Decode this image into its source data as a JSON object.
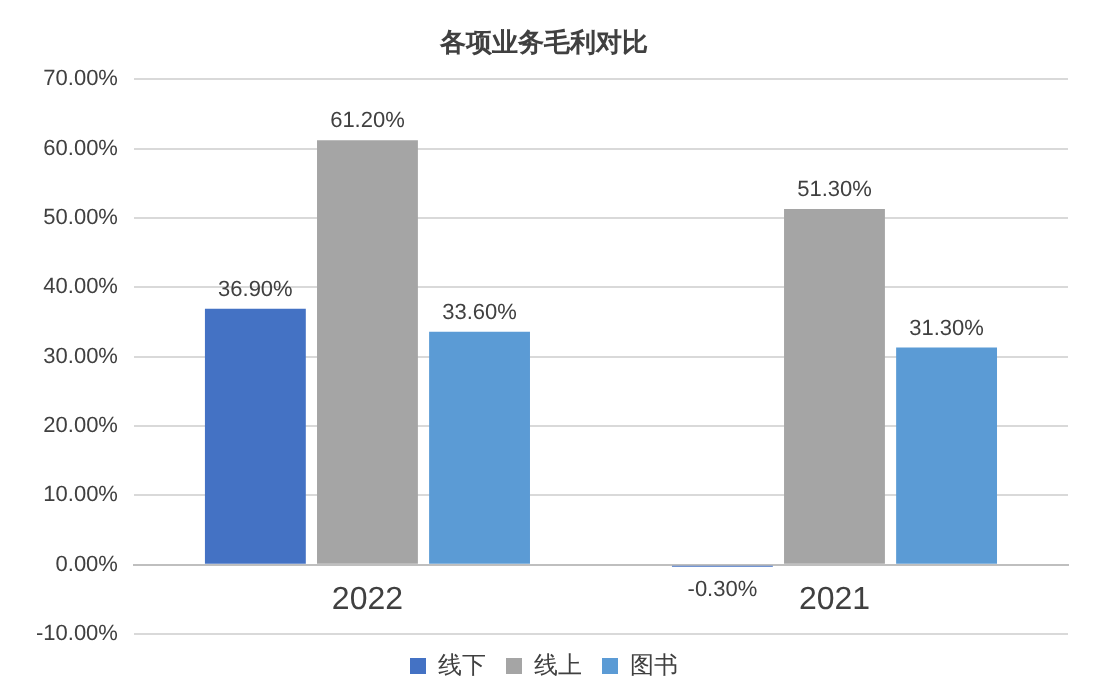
{
  "chart_data": {
    "type": "bar",
    "title": "各项业务毛利对比",
    "categories": [
      "2022",
      "2021"
    ],
    "series": [
      {
        "name": "线下",
        "color": "#4472c4",
        "values": [
          36.9,
          -0.3
        ],
        "value_labels": [
          "36.90%",
          "-0.30%"
        ]
      },
      {
        "name": "线上",
        "color": "#a5a5a5",
        "values": [
          61.2,
          51.3
        ],
        "value_labels": [
          "61.20%",
          "51.30%"
        ]
      },
      {
        "name": "图书",
        "color": "#5b9bd5",
        "values": [
          33.6,
          31.3
        ],
        "value_labels": [
          "33.60%",
          "31.30%"
        ]
      }
    ],
    "ylim": [
      -10,
      70
    ],
    "yticks": [
      {
        "value": -10,
        "label": "-10.00%"
      },
      {
        "value": 0,
        "label": "0.00%"
      },
      {
        "value": 10,
        "label": "10.00%"
      },
      {
        "value": 20,
        "label": "20.00%"
      },
      {
        "value": 30,
        "label": "30.00%"
      },
      {
        "value": 40,
        "label": "40.00%"
      },
      {
        "value": 50,
        "label": "50.00%"
      },
      {
        "value": 60,
        "label": "60.00%"
      },
      {
        "value": 70,
        "label": "70.00%"
      }
    ],
    "grid": "y",
    "legend": "bottom"
  }
}
